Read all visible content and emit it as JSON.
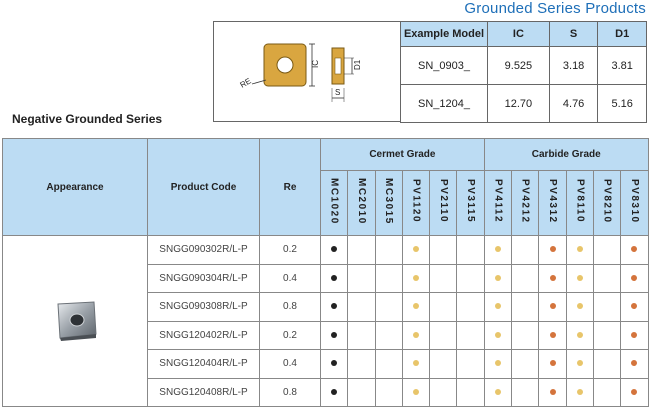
{
  "header": {
    "title": "Grounded Series Products"
  },
  "section": {
    "title": "Negative Grounded Series"
  },
  "diagram_labels": {
    "re": "RE",
    "ic": "IC",
    "d1": "D1",
    "s": "S"
  },
  "dim_table": {
    "headers": [
      "Example Model",
      "IC",
      "S",
      "D1"
    ],
    "rows": [
      [
        "SN_0903_",
        "9.525",
        "3.18",
        "3.81"
      ],
      [
        "SN_1204_",
        "12.70",
        "4.76",
        "5.16"
      ]
    ]
  },
  "main_table": {
    "headers": {
      "appearance": "Appearance",
      "product_code": "Product Code",
      "re": "Re",
      "cermet": "Cermet Grade",
      "carbide": "Carbide Grade"
    },
    "grades": [
      "MC1020",
      "MC2010",
      "MC3015",
      "PV1120",
      "PV2110",
      "PV3115",
      "PV4112",
      "PV4212",
      "PV4312",
      "PV8110",
      "PV8210",
      "PV8310"
    ],
    "rows": [
      {
        "code": "SNGG090302R/L-P",
        "re": "0.2",
        "marks": [
          "k",
          "",
          "",
          "y",
          "",
          "",
          "y",
          "",
          "o",
          "y",
          "",
          "o"
        ]
      },
      {
        "code": "SNGG090304R/L-P",
        "re": "0.4",
        "marks": [
          "k",
          "",
          "",
          "y",
          "",
          "",
          "y",
          "",
          "o",
          "y",
          "",
          "o"
        ]
      },
      {
        "code": "SNGG090308R/L-P",
        "re": "0.8",
        "marks": [
          "k",
          "",
          "",
          "y",
          "",
          "",
          "y",
          "",
          "o",
          "y",
          "",
          "o"
        ]
      },
      {
        "code": "SNGG120402R/L-P",
        "re": "0.2",
        "marks": [
          "k",
          "",
          "",
          "y",
          "",
          "",
          "y",
          "",
          "o",
          "y",
          "",
          "o"
        ]
      },
      {
        "code": "SNGG120404R/L-P",
        "re": "0.4",
        "marks": [
          "k",
          "",
          "",
          "y",
          "",
          "",
          "y",
          "",
          "o",
          "y",
          "",
          "o"
        ]
      },
      {
        "code": "SNGG120408R/L-P",
        "re": "0.8",
        "marks": [
          "k",
          "",
          "",
          "y",
          "",
          "",
          "y",
          "",
          "o",
          "y",
          "",
          "o"
        ]
      }
    ]
  },
  "colors": {
    "accent": "#1e6fb8",
    "header_bg": "#bcdcf3",
    "black_dot": "#222222",
    "yellow_dot": "#e8c56a",
    "orange_dot": "#d4743c"
  }
}
